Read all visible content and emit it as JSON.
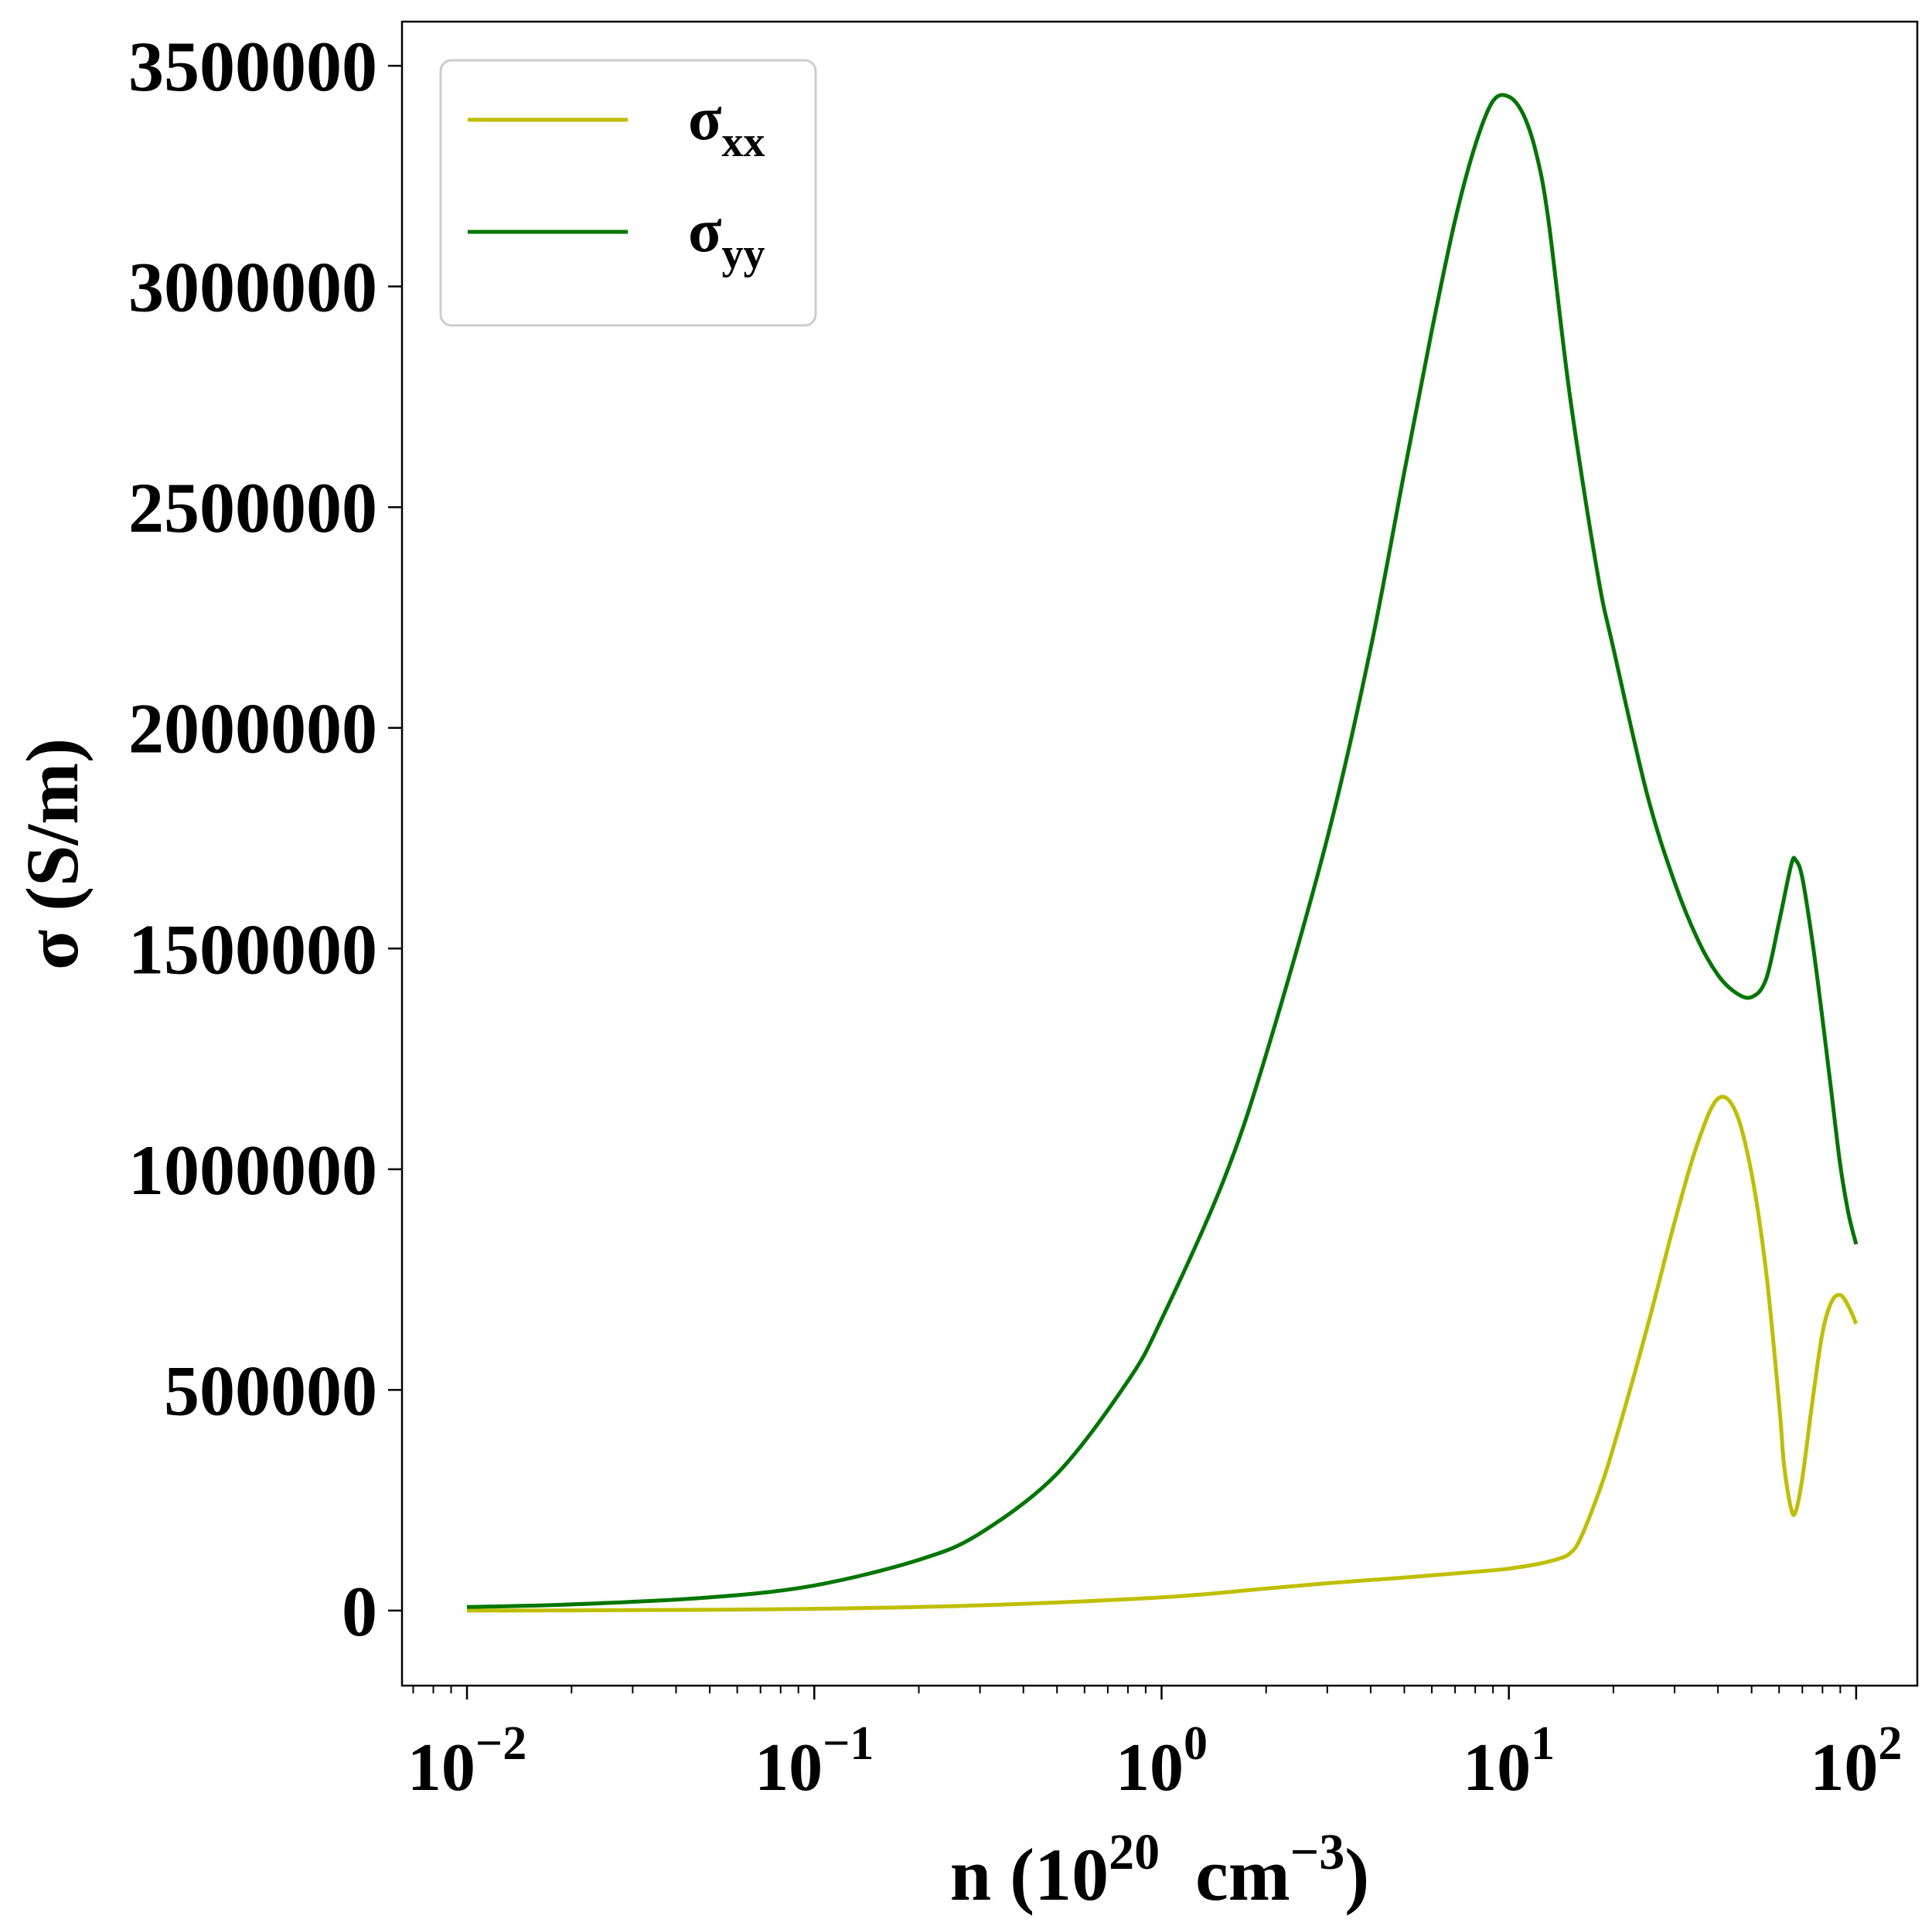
{
  "chart_data": {
    "type": "line",
    "xlabel": "n (10",
    "xlabel_sup": "20",
    "xlabel_unit": "cm",
    "xlabel_unit_sup": "−3",
    "xlabel_close": ")",
    "ylabel": "σ (S/m)",
    "x_scale": "log",
    "xlim": [
      0.0065,
      150
    ],
    "ylim": [
      -170000,
      3600000
    ],
    "grid": false,
    "legend_position": "top-left",
    "y_ticks": [
      0,
      500000,
      1000000,
      1500000,
      2000000,
      2500000,
      3000000,
      3500000
    ],
    "y_tick_labels": [
      "0",
      "500000",
      "1000000",
      "1500000",
      "2000000",
      "2500000",
      "3000000",
      "3500000"
    ],
    "x_ticks": [
      {
        "value": 0.01,
        "base": "10",
        "exp": "−2"
      },
      {
        "value": 0.1,
        "base": "10",
        "exp": "−1"
      },
      {
        "value": 1,
        "base": "10",
        "exp": "0"
      },
      {
        "value": 10,
        "base": "10",
        "exp": "1"
      },
      {
        "value": 100,
        "base": "10",
        "exp": "2"
      }
    ],
    "series": [
      {
        "name": "σxx",
        "name_base": "σ",
        "name_sub": "xx",
        "color": "#bfbf00",
        "x": [
          0.01,
          0.03,
          0.1,
          0.3,
          1,
          2,
          3,
          5,
          8,
          10,
          12,
          14,
          15,
          16,
          18,
          20,
          25,
          30,
          35,
          40,
          45,
          50,
          55,
          60,
          62,
          65,
          67,
          70,
          75,
          80,
          85,
          90,
          95,
          100
        ],
        "y": [
          0,
          1000,
          4000,
          12000,
          30000,
          50000,
          62000,
          75000,
          88000,
          95000,
          105000,
          118000,
          130000,
          160000,
          260000,
          370000,
          640000,
          880000,
          1060000,
          1160000,
          1130000,
          990000,
          770000,
          470000,
          330000,
          230000,
          225000,
          300000,
          480000,
          630000,
          700000,
          715000,
          690000,
          650000
        ]
      },
      {
        "name": "σyy",
        "name_base": "σ",
        "name_sub": "yy",
        "color": "#007700",
        "x": [
          0.01,
          0.02,
          0.05,
          0.1,
          0.2,
          0.3,
          0.5,
          0.8,
          1,
          1.5,
          2,
          3,
          4,
          5,
          6,
          7,
          8,
          9,
          10,
          11,
          12,
          13,
          15,
          18,
          20,
          25,
          30,
          35,
          40,
          45,
          50,
          55,
          60,
          65,
          67,
          70,
          75,
          80,
          85,
          90,
          95,
          100
        ],
        "y": [
          8000,
          14000,
          30000,
          57000,
          115000,
          175000,
          310000,
          520000,
          660000,
          970000,
          1260000,
          1750000,
          2180000,
          2580000,
          2900000,
          3150000,
          3320000,
          3420000,
          3430000,
          3390000,
          3300000,
          3150000,
          2750000,
          2350000,
          2180000,
          1850000,
          1650000,
          1520000,
          1440000,
          1400000,
          1390000,
          1430000,
          1560000,
          1690000,
          1700000,
          1660000,
          1510000,
          1340000,
          1170000,
          1010000,
          900000,
          830000
        ]
      }
    ]
  }
}
